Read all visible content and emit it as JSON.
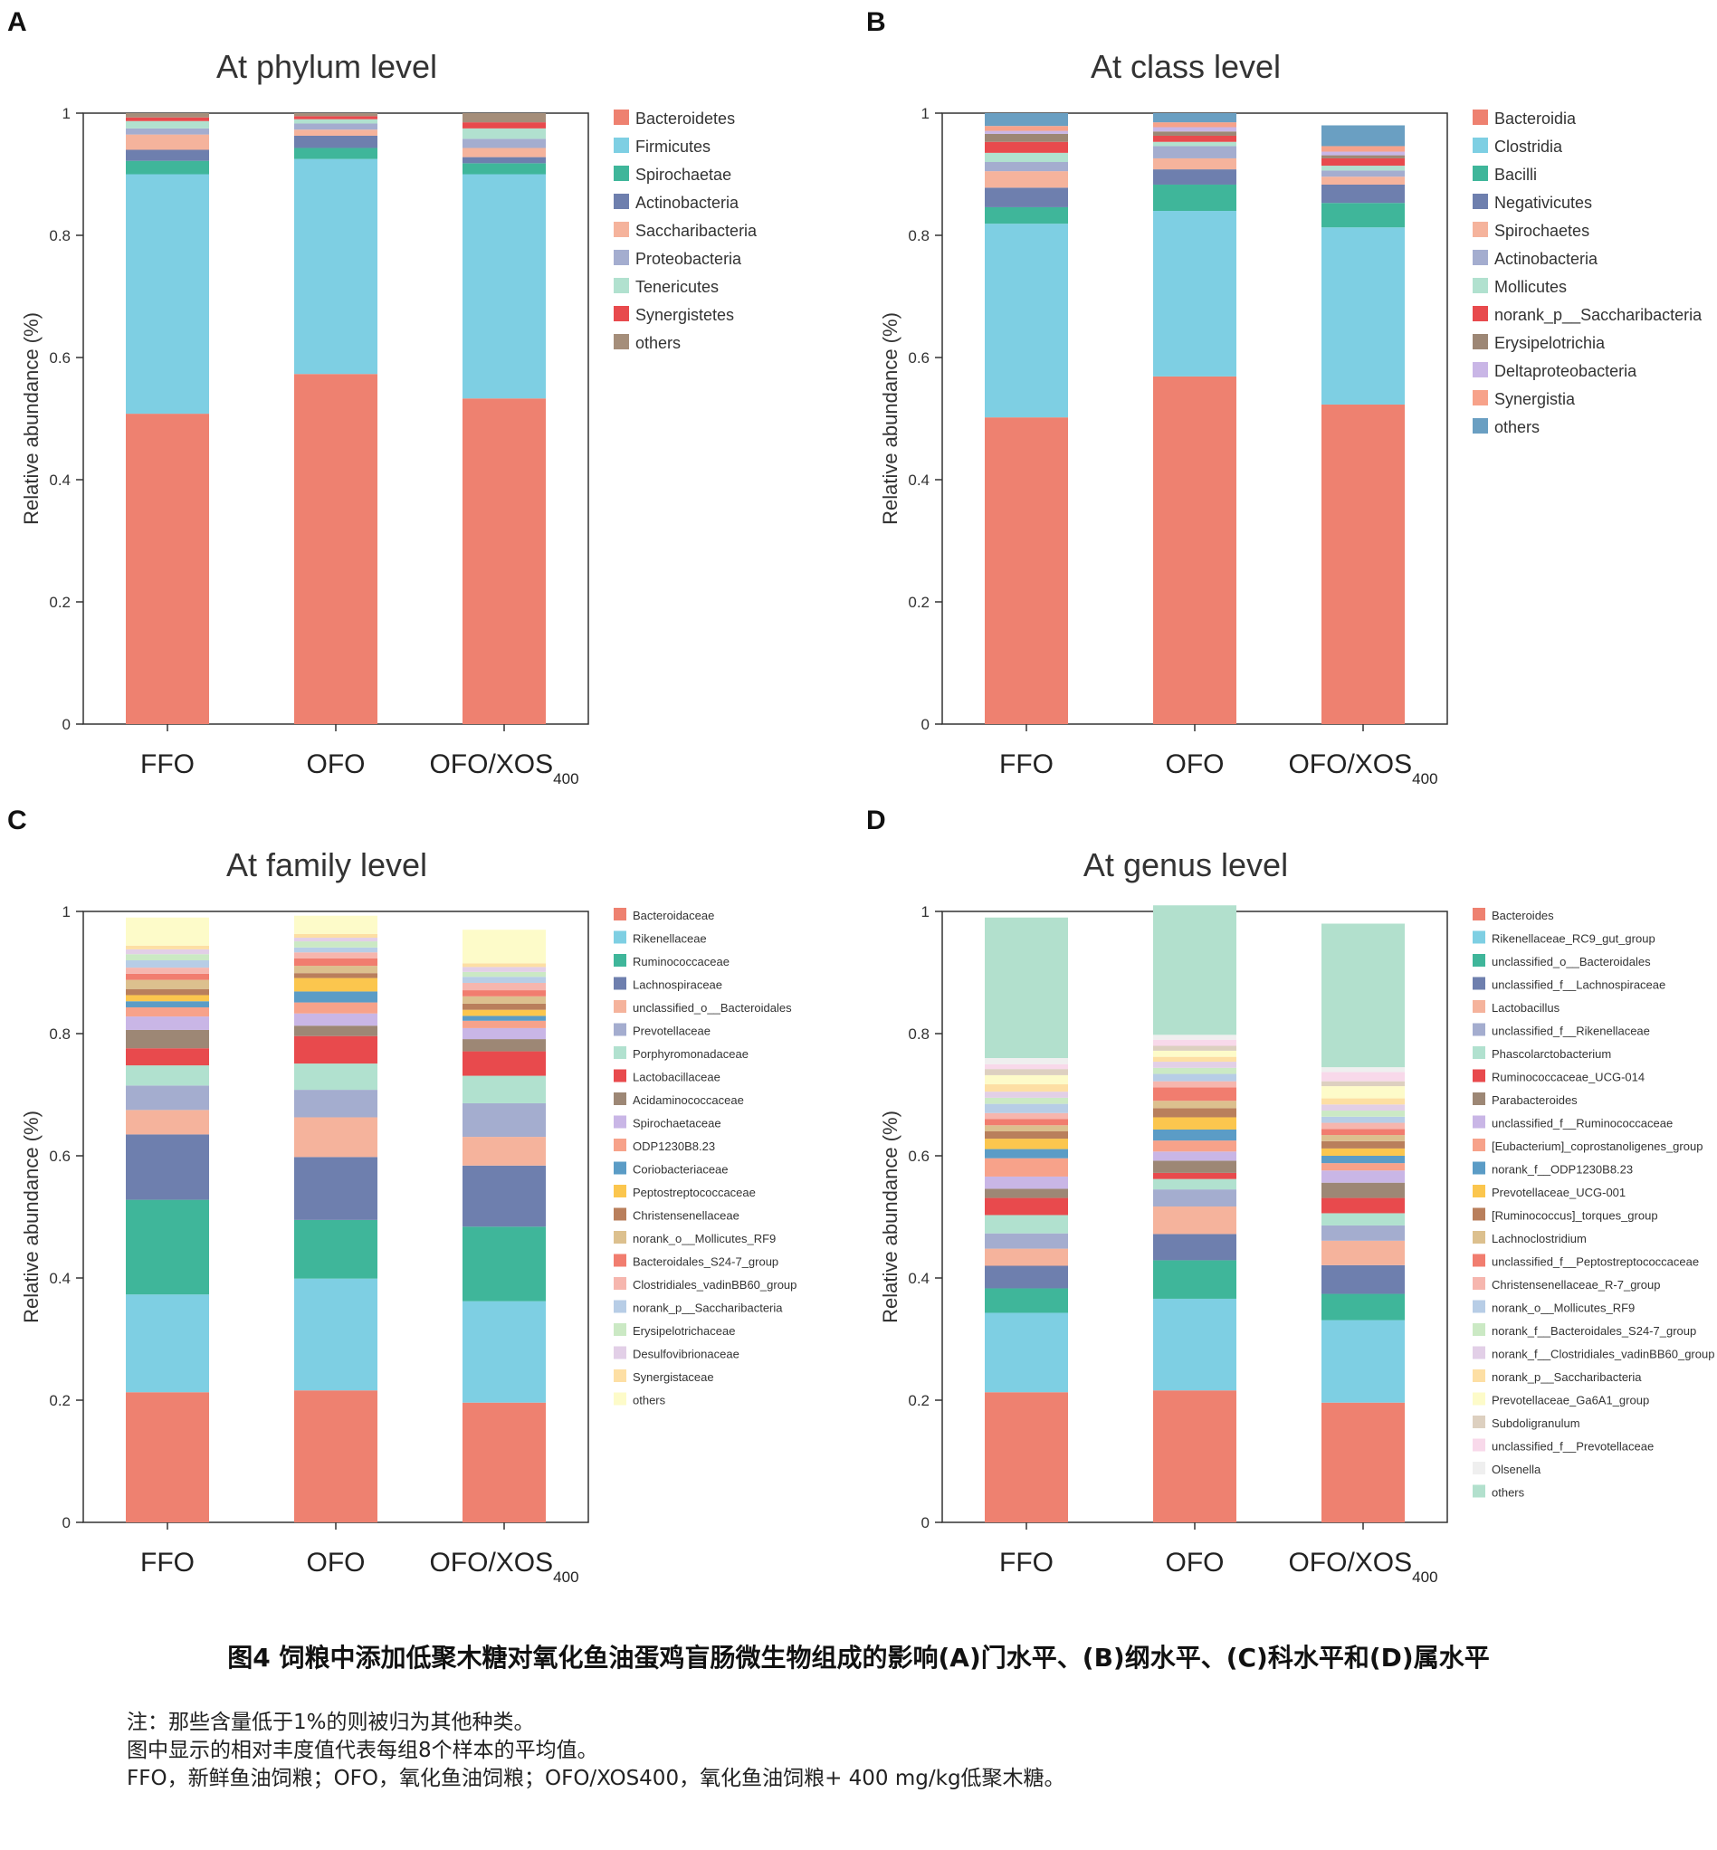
{
  "colors": {
    "palette": [
      "#ee8170",
      "#7ecfe3",
      "#3fb69a",
      "#6e7fae",
      "#f5b39c",
      "#a4adcf",
      "#b1e1cf",
      "#e84a4d",
      "#9d8775",
      "#c9b6e6",
      "#f7a28a",
      "#5b9cc6",
      "#fbc64e",
      "#b97f5c",
      "#dcc08e",
      "#f17d6f",
      "#f6b6ae",
      "#b7cde6",
      "#cbe9c4",
      "#e2cfe7",
      "#fddfa4",
      "#fdfbc9",
      "#ddd0c0",
      "#f8d9ea",
      "#efefef"
    ],
    "others_phylum": "#a58e7a",
    "others_class": "#6a9fc2",
    "others_genus": "#b2e0cd"
  },
  "ytick_labels": [
    "0",
    "0.2",
    "0.4",
    "0.6",
    "0.8",
    "1"
  ],
  "ylabel": "Relative abundance (%)",
  "xtick_main": [
    "FFO",
    "OFO",
    "OFO/XOS"
  ],
  "xtick_sub": [
    "",
    "",
    "400"
  ],
  "chart_data": [
    {
      "panel": "A",
      "type": "bar",
      "stacked": true,
      "title": "At phylum level",
      "ylabel": "Relative abundance (%)",
      "ylim": [
        0,
        1
      ],
      "categories": [
        "FFO",
        "OFO",
        "OFO/XOS400"
      ],
      "legend_position": "right",
      "series": [
        {
          "name": "Bacteroidetes",
          "values": [
            0.508,
            0.573,
            0.533
          ]
        },
        {
          "name": "Firmicutes",
          "values": [
            0.392,
            0.352,
            0.367
          ]
        },
        {
          "name": "Spirochaetae",
          "values": [
            0.022,
            0.018,
            0.018
          ]
        },
        {
          "name": "Actinobacteria",
          "values": [
            0.018,
            0.02,
            0.01
          ]
        },
        {
          "name": "Saccharibacteria",
          "values": [
            0.025,
            0.01,
            0.015
          ]
        },
        {
          "name": "Proteobacteria",
          "values": [
            0.01,
            0.01,
            0.015
          ]
        },
        {
          "name": "Tenericutes",
          "values": [
            0.012,
            0.007,
            0.017
          ]
        },
        {
          "name": "Synergistetes",
          "values": [
            0.006,
            0.005,
            0.01
          ]
        },
        {
          "name": "others",
          "values": [
            0.007,
            0.005,
            0.015
          ]
        }
      ]
    },
    {
      "panel": "B",
      "type": "bar",
      "stacked": true,
      "title": "At class level",
      "ylabel": "Relative abundance (%)",
      "ylim": [
        0,
        1
      ],
      "categories": [
        "FFO",
        "OFO",
        "OFO/XOS400"
      ],
      "legend_position": "right",
      "series": [
        {
          "name": "Bacteroidia",
          "values": [
            0.502,
            0.569,
            0.523
          ]
        },
        {
          "name": "Clostridia",
          "values": [
            0.317,
            0.271,
            0.29
          ]
        },
        {
          "name": "Bacilli",
          "values": [
            0.027,
            0.043,
            0.04
          ]
        },
        {
          "name": "Negativicutes",
          "values": [
            0.032,
            0.025,
            0.03
          ]
        },
        {
          "name": "Spirochaetes",
          "values": [
            0.027,
            0.018,
            0.013
          ]
        },
        {
          "name": "Actinobacteria",
          "values": [
            0.015,
            0.02,
            0.01
          ]
        },
        {
          "name": "Mollicutes",
          "values": [
            0.015,
            0.007,
            0.008
          ]
        },
        {
          "name": "norank_p__Saccharibacteria",
          "values": [
            0.018,
            0.01,
            0.012
          ]
        },
        {
          "name": "Erysipelotrichia",
          "values": [
            0.013,
            0.007,
            0.005
          ]
        },
        {
          "name": "Deltaproteobacteria",
          "values": [
            0.005,
            0.007,
            0.006
          ]
        },
        {
          "name": "Synergistia",
          "values": [
            0.008,
            0.008,
            0.009
          ]
        },
        {
          "name": "others",
          "values": [
            0.021,
            0.015,
            0.034
          ]
        }
      ]
    },
    {
      "panel": "C",
      "type": "bar",
      "stacked": true,
      "title": "At family level",
      "ylabel": "Relative abundance (%)",
      "ylim": [
        0,
        1
      ],
      "categories": [
        "FFO",
        "OFO",
        "OFO/XOS400"
      ],
      "legend_position": "right",
      "series": [
        {
          "name": "Bacteroidaceae",
          "values": [
            0.213,
            0.216,
            0.196
          ]
        },
        {
          "name": "Rikenellaceae",
          "values": [
            0.16,
            0.183,
            0.166
          ]
        },
        {
          "name": "Ruminococcaceae",
          "values": [
            0.155,
            0.096,
            0.122
          ]
        },
        {
          "name": "Lachnospiraceae",
          "values": [
            0.107,
            0.103,
            0.1
          ]
        },
        {
          "name": "unclassified_o__Bacteroidales",
          "values": [
            0.04,
            0.065,
            0.047
          ]
        },
        {
          "name": "Prevotellaceae",
          "values": [
            0.04,
            0.045,
            0.055
          ]
        },
        {
          "name": "Porphyromonadaceae",
          "values": [
            0.033,
            0.043,
            0.045
          ]
        },
        {
          "name": "Lactobacillaceae",
          "values": [
            0.028,
            0.045,
            0.04
          ]
        },
        {
          "name": "Acidaminococcaceae",
          "values": [
            0.03,
            0.017,
            0.02
          ]
        },
        {
          "name": "Spirochaetaceae",
          "values": [
            0.022,
            0.02,
            0.018
          ]
        },
        {
          "name": "ODP1230B8.23",
          "values": [
            0.015,
            0.018,
            0.012
          ]
        },
        {
          "name": "Coriobacteriaceae",
          "values": [
            0.01,
            0.018,
            0.008
          ]
        },
        {
          "name": "Peptostreptococcaceae",
          "values": [
            0.01,
            0.022,
            0.01
          ]
        },
        {
          "name": "Christensenellaceae",
          "values": [
            0.01,
            0.008,
            0.01
          ]
        },
        {
          "name": "norank_o__Mollicutes_RF9",
          "values": [
            0.015,
            0.012,
            0.012
          ]
        },
        {
          "name": "Bacteroidales_S24-7_group",
          "values": [
            0.01,
            0.012,
            0.01
          ]
        },
        {
          "name": "Clostridiales_vadinBB60_group",
          "values": [
            0.01,
            0.01,
            0.012
          ]
        },
        {
          "name": "norank_p__Saccharibacteria",
          "values": [
            0.012,
            0.008,
            0.01
          ]
        },
        {
          "name": "Erysipelotrichaceae",
          "values": [
            0.01,
            0.01,
            0.008
          ]
        },
        {
          "name": "Desulfovibrionaceae",
          "values": [
            0.008,
            0.006,
            0.008
          ]
        },
        {
          "name": "Synergistaceae",
          "values": [
            0.006,
            0.006,
            0.006
          ]
        },
        {
          "name": "others",
          "values": [
            0.046,
            0.03,
            0.055
          ]
        }
      ]
    },
    {
      "panel": "D",
      "type": "bar",
      "stacked": true,
      "title": "At genus level",
      "ylabel": "Relative abundance (%)",
      "ylim": [
        0,
        1
      ],
      "categories": [
        "FFO",
        "OFO",
        "OFO/XOS400"
      ],
      "legend_position": "right",
      "series": [
        {
          "name": "Bacteroides",
          "values": [
            0.213,
            0.216,
            0.196
          ]
        },
        {
          "name": "Rikenellaceae_RC9_gut_group",
          "values": [
            0.13,
            0.15,
            0.135
          ]
        },
        {
          "name": "unclassified_o__Bacteroidales",
          "values": [
            0.04,
            0.063,
            0.043
          ]
        },
        {
          "name": "unclassified_f__Lachnospiraceae",
          "values": [
            0.037,
            0.043,
            0.047
          ]
        },
        {
          "name": "Lactobacillus",
          "values": [
            0.028,
            0.045,
            0.04
          ]
        },
        {
          "name": "unclassified_f__Rikenellaceae",
          "values": [
            0.025,
            0.028,
            0.025
          ]
        },
        {
          "name": "Phascolarctobacterium",
          "values": [
            0.03,
            0.017,
            0.02
          ]
        },
        {
          "name": "Ruminococcaceae_UCG-014",
          "values": [
            0.028,
            0.01,
            0.025
          ]
        },
        {
          "name": "Parabacteroides",
          "values": [
            0.015,
            0.02,
            0.025
          ]
        },
        {
          "name": "unclassified_f__Ruminococcaceae",
          "values": [
            0.02,
            0.015,
            0.02
          ]
        },
        {
          "name": "[Eubacterium]_coprostanoligenes_group",
          "values": [
            0.03,
            0.018,
            0.012
          ]
        },
        {
          "name": "norank_f__ODP1230B8.23",
          "values": [
            0.015,
            0.018,
            0.012
          ]
        },
        {
          "name": "Prevotellaceae_UCG-001",
          "values": [
            0.017,
            0.02,
            0.012
          ]
        },
        {
          "name": "[Ruminococcus]_torques_group",
          "values": [
            0.012,
            0.015,
            0.012
          ]
        },
        {
          "name": "Lachnoclostridium",
          "values": [
            0.01,
            0.012,
            0.01
          ]
        },
        {
          "name": "unclassified_f__Peptostreptococcaceae",
          "values": [
            0.01,
            0.022,
            0.01
          ]
        },
        {
          "name": "Christensenellaceae_R-7_group",
          "values": [
            0.01,
            0.01,
            0.01
          ]
        },
        {
          "name": "norank_o__Mollicutes_RF9",
          "values": [
            0.015,
            0.012,
            0.01
          ]
        },
        {
          "name": "norank_f__Bacteroidales_S24-7_group",
          "values": [
            0.01,
            0.01,
            0.01
          ]
        },
        {
          "name": "norank_f__Clostridiales_vadinBB60_group",
          "values": [
            0.01,
            0.01,
            0.01
          ]
        },
        {
          "name": "norank_p__Saccharibacteria",
          "values": [
            0.012,
            0.008,
            0.01
          ]
        },
        {
          "name": "Prevotellaceae_Ga6A1_group",
          "values": [
            0.015,
            0.01,
            0.02
          ]
        },
        {
          "name": "Subdoligranulum",
          "values": [
            0.01,
            0.008,
            0.008
          ]
        },
        {
          "name": "unclassified_f__Prevotellaceae",
          "values": [
            0.008,
            0.01,
            0.015
          ]
        },
        {
          "name": "Olsenella",
          "values": [
            0.01,
            0.008,
            0.008
          ]
        },
        {
          "name": "others",
          "values": [
            0.23,
            0.212,
            0.235
          ]
        }
      ]
    }
  ],
  "caption": "图4 饲粮中添加低聚木糖对氧化鱼油蛋鸡盲肠微生物组成的影响(A)门水平、(B)纲水平、(C)科水平和(D)属水平",
  "notes": [
    "注：那些含量低于1%的则被归为其他种类。",
    "图中显示的相对丰度值代表每组8个样本的平均值。",
    "FFO，新鲜鱼油饲粮；OFO，氧化鱼油饲粮；OFO/XOS400，氧化鱼油饲粮+ 400 mg/kg低聚木糖。"
  ]
}
